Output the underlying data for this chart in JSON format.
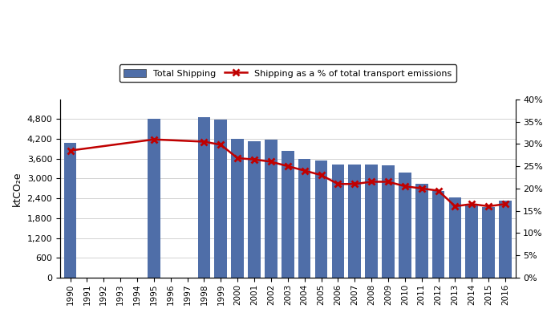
{
  "years": [
    1990,
    1991,
    1992,
    1993,
    1994,
    1995,
    1996,
    1997,
    1998,
    1999,
    2000,
    2001,
    2002,
    2003,
    2004,
    2005,
    2006,
    2007,
    2008,
    2009,
    2010,
    2011,
    2012,
    2013,
    2014,
    2015,
    2016
  ],
  "bar_heights": [
    4080,
    0,
    0,
    0,
    0,
    4820,
    0,
    0,
    4850,
    4780,
    4200,
    4130,
    4180,
    3830,
    3600,
    3540,
    3430,
    3430,
    3420,
    3390,
    3180,
    2830,
    2620,
    2430,
    2200,
    2140,
    2340
  ],
  "pct_years": [
    1990,
    1995,
    1998,
    1999,
    2000,
    2001,
    2002,
    2003,
    2004,
    2005,
    2006,
    2007,
    2008,
    2009,
    2010,
    2011,
    2012,
    2013,
    2014,
    2015,
    2016
  ],
  "pct_vals": [
    0.285,
    0.31,
    0.305,
    0.298,
    0.268,
    0.265,
    0.26,
    0.25,
    0.24,
    0.23,
    0.21,
    0.21,
    0.215,
    0.215,
    0.205,
    0.2,
    0.195,
    0.16,
    0.165,
    0.16,
    0.165
  ],
  "bar_color": "#4F6EA8",
  "line_color": "#C00000",
  "ylabel_left": "ktCO₂e",
  "ylim_left": [
    0,
    5400
  ],
  "yticks_left": [
    0,
    600,
    1200,
    1800,
    2400,
    3000,
    3600,
    4200,
    4800
  ],
  "ylim_right": [
    0,
    0.4
  ],
  "yticks_right": [
    0.0,
    0.05,
    0.1,
    0.15,
    0.2,
    0.25,
    0.3,
    0.35,
    0.4
  ],
  "legend_bar": "Total Shipping",
  "legend_line": "Shipping as a % of total transport emissions",
  "background_color": "#FFFFFF",
  "figwidth": 6.92,
  "figheight": 3.95,
  "dpi": 100
}
